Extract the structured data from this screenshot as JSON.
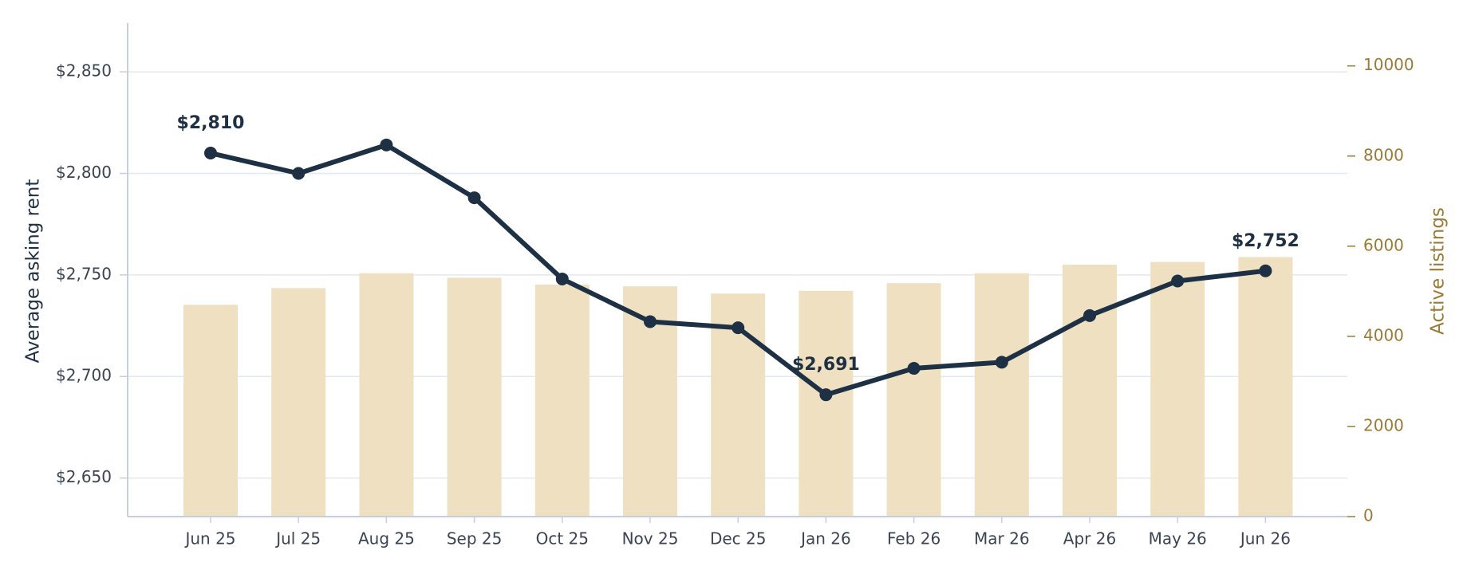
{
  "chart_data": {
    "type": "combo",
    "ylabel": "Average asking rent",
    "y2label": "Active listings",
    "categories": [
      "Jun 25",
      "Jul 25",
      "Aug 25",
      "Sep 25",
      "Oct 25",
      "Nov 25",
      "Dec 25",
      "Jan 26",
      "Feb 26",
      "Mar 26",
      "Apr 26",
      "May 26",
      "Jun 26"
    ],
    "series": [
      {
        "type": "bar",
        "axis": "y2",
        "color": "#efe0c2",
        "values": [
          4700,
          5070,
          5400,
          5300,
          5150,
          5110,
          4950,
          5010,
          5180,
          5400,
          5590,
          5650,
          5760
        ]
      },
      {
        "type": "line",
        "axis": "y",
        "color": "#1e3044",
        "values": [
          2810,
          2800,
          2814,
          2788,
          2748,
          2727,
          2724,
          2691,
          2704,
          2707,
          2730,
          2747,
          2752
        ],
        "value_labels": [
          "$2,810",
          null,
          null,
          null,
          null,
          null,
          null,
          "$2,691",
          null,
          null,
          null,
          null,
          "$2,752"
        ]
      }
    ],
    "ylim": [
      2631,
      2874
    ],
    "yticks": [
      {
        "value": 2650,
        "label": "$2,650"
      },
      {
        "value": 2700,
        "label": "$2,700"
      },
      {
        "value": 2750,
        "label": "$2,750"
      },
      {
        "value": 2800,
        "label": "$2,800"
      },
      {
        "value": 2850,
        "label": "$2,850"
      }
    ],
    "y2lim": [
      0,
      10950
    ],
    "y2ticks": [
      0,
      2000,
      4000,
      6000,
      8000,
      10000
    ],
    "y2color": "#9a7b35",
    "grid": true
  }
}
